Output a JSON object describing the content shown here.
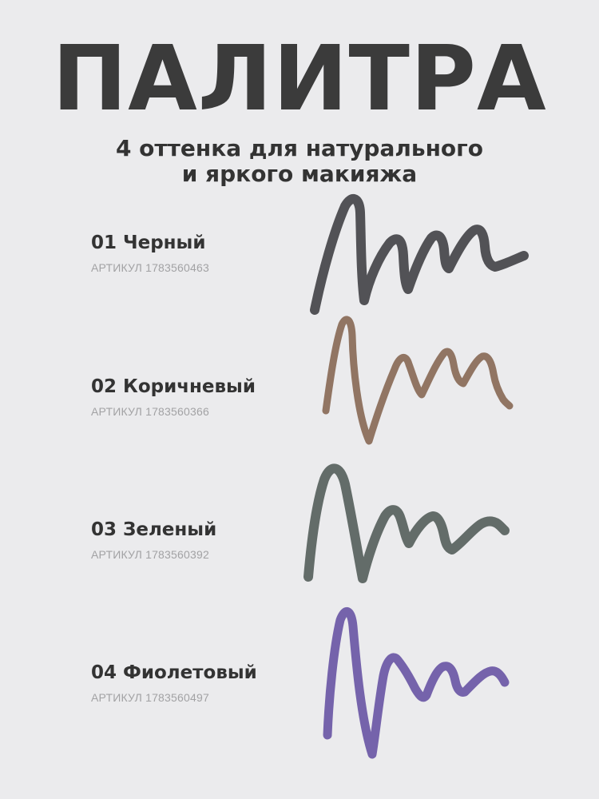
{
  "header": {
    "title": "ПАЛИТРА",
    "subtitle_line1": "4 оттенка для натурального",
    "subtitle_line2": "и яркого макияжа"
  },
  "shades": [
    {
      "name": "01 Черный",
      "sku": "АРТИКУЛ 1783560463",
      "color": "#4a4a4e",
      "icon": "black-pencil-stroke"
    },
    {
      "name": "02 Коричневый",
      "sku": "АРТИКУЛ 1783560366",
      "color": "#8c6f5c",
      "icon": "brown-pencil-stroke"
    },
    {
      "name": "03 Зеленый",
      "sku": "АРТИКУЛ 1783560392",
      "color": "#5c6562",
      "icon": "green-pencil-stroke"
    },
    {
      "name": "04 Фиолетовый",
      "sku": "АРТИКУЛ 1783560497",
      "color": "#6f5ca8",
      "icon": "violet-pencil-stroke"
    }
  ]
}
